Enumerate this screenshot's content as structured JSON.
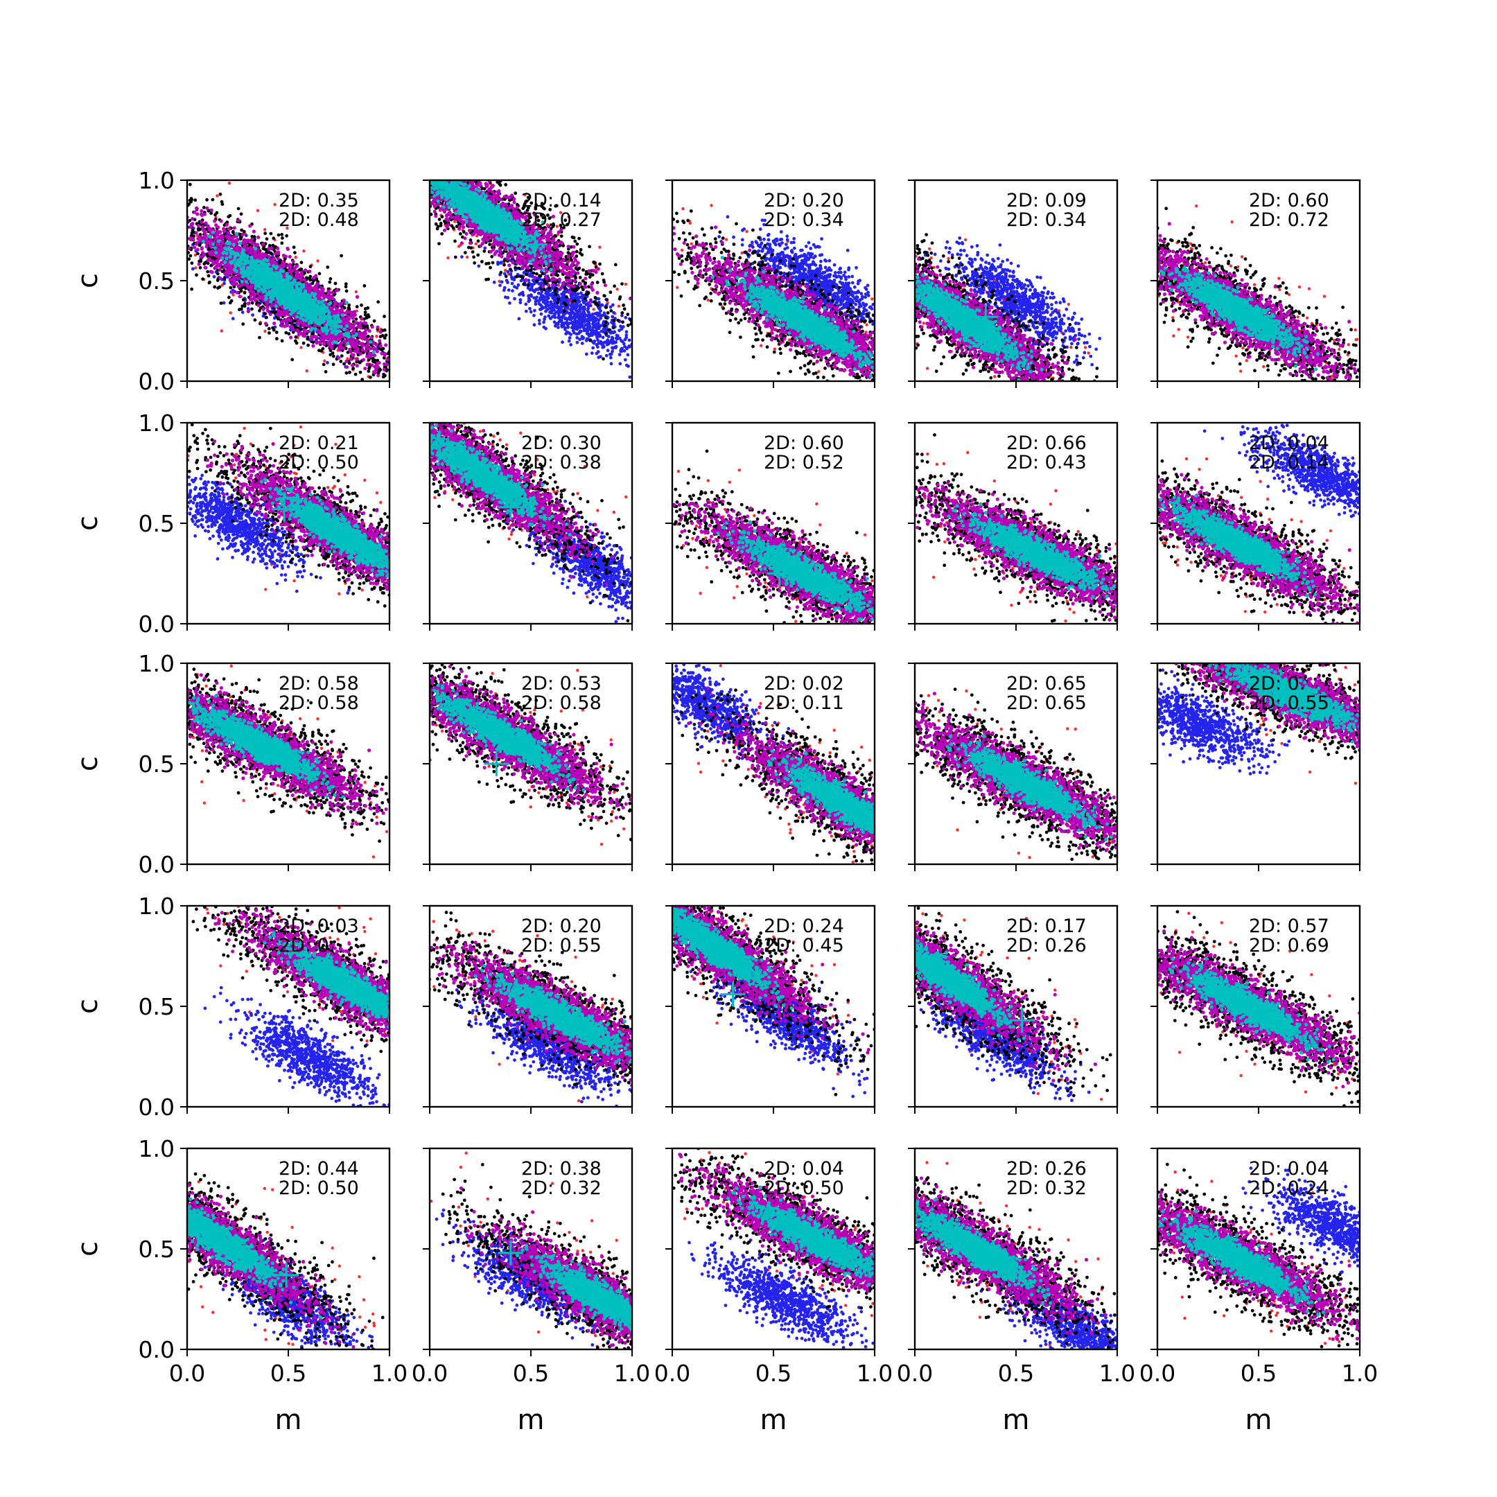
{
  "chart_data": {
    "type": "scatter",
    "layout": {
      "rows": 5,
      "cols": 5
    },
    "xlabel": "m",
    "ylabel": "c",
    "xlim": [
      0.0,
      1.0
    ],
    "ylim": [
      0.0,
      1.0
    ],
    "xticks": [
      "0.0",
      "0.5",
      "1.0"
    ],
    "yticks": [
      "0.0",
      "0.5",
      "1.0"
    ],
    "grid": false,
    "legend": "none",
    "colors": {
      "outer_sample": "#000000",
      "outlier_sample": "#ff2a2a",
      "alt_mode_sample": "#2424ee",
      "mid_sample": "#bb00bb",
      "core_sample": "#00bfbf",
      "truth_marker": "#00bfbf"
    },
    "panels": [
      {
        "ann": [
          "2D: 0.35",
          "2D: 0.48"
        ],
        "center": [
          0.48,
          0.45
        ],
        "slope": -0.7,
        "truth": null,
        "alt": [
          0.45,
          0.45
        ]
      },
      {
        "ann": [
          "2D: 0.14",
          "2D: 0.27"
        ],
        "center": [
          0.25,
          0.85
        ],
        "slope": -0.7,
        "truth": [
          0.52,
          0.68
        ],
        "alt": [
          0.7,
          0.35
        ]
      },
      {
        "ann": [
          "2D: 0.20",
          "2D: 0.34"
        ],
        "center": [
          0.65,
          0.3
        ],
        "slope": -0.6,
        "truth": null,
        "alt": [
          0.7,
          0.5
        ]
      },
      {
        "ann": [
          "2D: 0.09",
          "2D: 0.34"
        ],
        "center": [
          0.25,
          0.3
        ],
        "slope": -0.7,
        "truth": [
          0.35,
          0.32
        ],
        "alt": [
          0.5,
          0.4
        ]
      },
      {
        "ann": [
          "2D: 0.60",
          "2D: 0.72"
        ],
        "center": [
          0.4,
          0.35
        ],
        "slope": -0.6,
        "truth": null,
        "alt": null
      },
      {
        "ann": [
          "2D: 0.21",
          "2D: 0.50"
        ],
        "center": [
          0.75,
          0.45
        ],
        "slope": -0.65,
        "truth": [
          0.48,
          0.57
        ],
        "alt": [
          0.25,
          0.5
        ]
      },
      {
        "ann": [
          "2D: 0.30",
          "2D: 0.38"
        ],
        "center": [
          0.25,
          0.75
        ],
        "slope": -0.7,
        "truth": [
          0.4,
          0.58
        ],
        "alt": [
          0.8,
          0.3
        ]
      },
      {
        "ann": [
          "2D: 0.60",
          "2D: 0.52"
        ],
        "center": [
          0.65,
          0.25
        ],
        "slope": -0.55,
        "truth": [
          0.53,
          0.25
        ],
        "alt": null
      },
      {
        "ann": [
          "2D: 0.66",
          "2D: 0.43"
        ],
        "center": [
          0.6,
          0.35
        ],
        "slope": -0.5,
        "truth": null,
        "alt": null
      },
      {
        "ann": [
          "2D: 0.04",
          "2D: 0.14"
        ],
        "center": [
          0.4,
          0.4
        ],
        "slope": -0.55,
        "truth": null,
        "alt": [
          0.8,
          0.75
        ]
      },
      {
        "ann": [
          "2D: 0.58",
          "2D: 0.58"
        ],
        "center": [
          0.35,
          0.6
        ],
        "slope": -0.55,
        "truth": [
          0.6,
          0.46
        ],
        "alt": null
      },
      {
        "ann": [
          "2D: 0.53",
          "2D: 0.58"
        ],
        "center": [
          0.35,
          0.65
        ],
        "slope": -0.6,
        "truth": [
          0.33,
          0.5
        ],
        "alt": null
      },
      {
        "ann": [
          "2D: 0.02",
          "2D: 0.11"
        ],
        "center": [
          0.85,
          0.3
        ],
        "slope": -0.65,
        "truth": [
          0.64,
          0.4
        ],
        "alt": [
          0.15,
          0.8
        ]
      },
      {
        "ann": [
          "2D: 0.65",
          "2D: 0.65"
        ],
        "center": [
          0.55,
          0.4
        ],
        "slope": -0.55,
        "truth": null,
        "alt": null
      },
      {
        "ann": [
          "2D: 0.",
          "2D: 0.55"
        ],
        "center": [
          0.65,
          0.85
        ],
        "slope": -0.45,
        "truth": null,
        "alt": [
          0.2,
          0.7
        ]
      },
      {
        "ann": [
          "2D: 0.03",
          "2D: 0."
        ],
        "center": [
          0.8,
          0.6
        ],
        "slope": -0.6,
        "truth": [
          0.59,
          0.7
        ],
        "alt": [
          0.6,
          0.25
        ]
      },
      {
        "ann": [
          "2D: 0.20",
          "2D: 0.55"
        ],
        "center": [
          0.65,
          0.45
        ],
        "slope": -0.55,
        "truth": null,
        "alt": [
          0.6,
          0.3
        ]
      },
      {
        "ann": [
          "2D: 0.24",
          "2D: 0.45"
        ],
        "center": [
          0.2,
          0.8
        ],
        "slope": -0.7,
        "truth": [
          0.3,
          0.56
        ],
        "alt": [
          0.55,
          0.45
        ]
      },
      {
        "ann": [
          "2D: 0.17",
          "2D: 0.26"
        ],
        "center": [
          0.15,
          0.65
        ],
        "slope": -0.7,
        "truth": [
          0.53,
          0.43
        ],
        "alt": [
          0.4,
          0.35
        ]
      },
      {
        "ann": [
          "2D: 0.57",
          "2D: 0.69"
        ],
        "center": [
          0.45,
          0.5
        ],
        "slope": -0.55,
        "truth": null,
        "alt": null
      },
      {
        "ann": [
          "2D: 0.44",
          "2D: 0.50"
        ],
        "center": [
          0.15,
          0.55
        ],
        "slope": -0.7,
        "truth": [
          0.49,
          0.37
        ],
        "alt": [
          0.5,
          0.25
        ]
      },
      {
        "ann": [
          "2D: 0.38",
          "2D: 0.32"
        ],
        "center": [
          0.85,
          0.25
        ],
        "slope": -0.6,
        "truth": [
          0.4,
          0.48
        ],
        "alt": [
          0.5,
          0.35
        ]
      },
      {
        "ann": [
          "2D: 0.04",
          "2D: 0.50"
        ],
        "center": [
          0.7,
          0.55
        ],
        "slope": -0.55,
        "truth": null,
        "alt": [
          0.55,
          0.25
        ]
      },
      {
        "ann": [
          "2D: 0.26",
          "2D: 0.32"
        ],
        "center": [
          0.3,
          0.5
        ],
        "slope": -0.6,
        "truth": null,
        "alt": [
          0.8,
          0.1
        ]
      },
      {
        "ann": [
          "2D: 0.04",
          "2D: 0.24"
        ],
        "center": [
          0.4,
          0.45
        ],
        "slope": -0.55,
        "truth": null,
        "alt": [
          0.9,
          0.6
        ]
      }
    ]
  }
}
